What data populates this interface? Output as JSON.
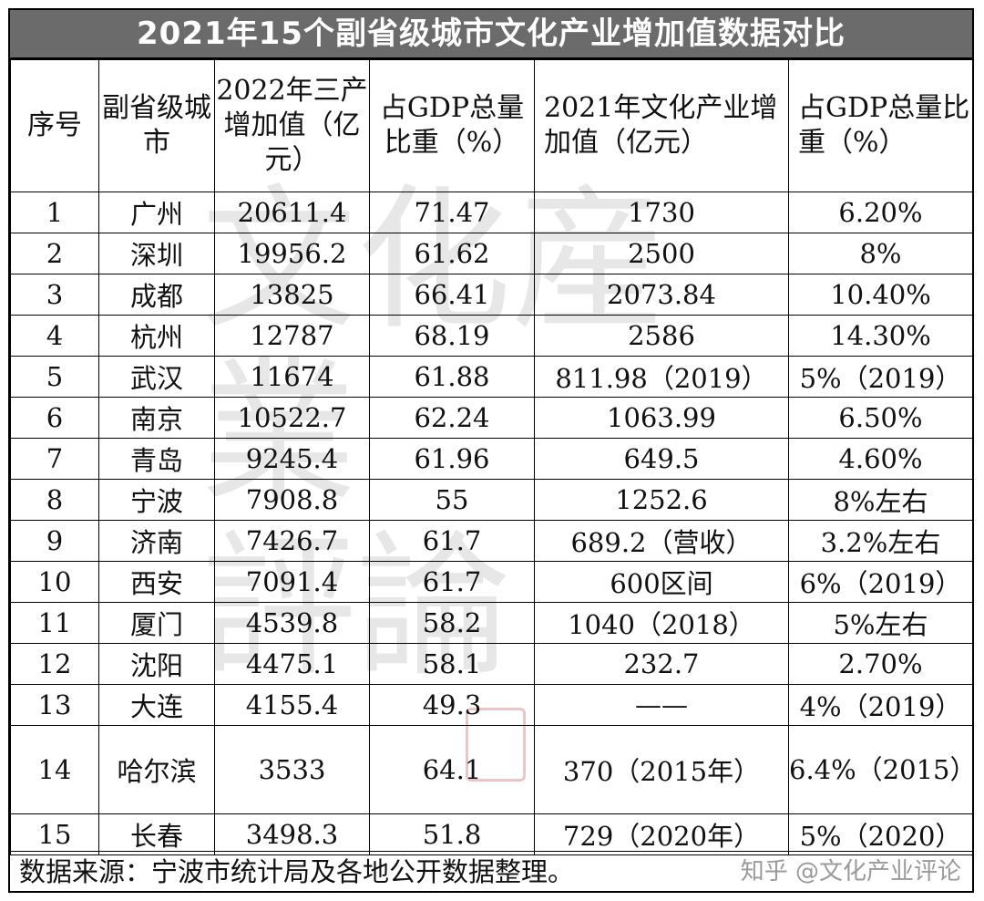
{
  "title": "2021年15个副省级城市文化产业增加值数据对比",
  "headers": [
    "序号",
    "副省级城市",
    "2022年三产增加值（亿元）",
    "占GDP总量比重（%）",
    "2021年文化产业增加值（亿元）",
    "占GDP总量比重（%）"
  ],
  "rows": [
    [
      "1",
      "广州",
      "20611.4",
      "71.47",
      "1730",
      "6.20%"
    ],
    [
      "2",
      "深圳",
      "19956.2",
      "61.62",
      "2500",
      "8%"
    ],
    [
      "3",
      "成都",
      "13825",
      "66.41",
      "2073.84",
      "10.40%"
    ],
    [
      "4",
      "杭州",
      "12787",
      "68.19",
      "2586",
      "14.30%"
    ],
    [
      "5",
      "武汉",
      "11674",
      "61.88",
      "811.98（2019）",
      "5%（2019）"
    ],
    [
      "6",
      "南京",
      "10522.7",
      "62.24",
      "1063.99",
      "6.50%"
    ],
    [
      "7",
      "青岛",
      "9245.4",
      "61.96",
      "649.5",
      "4.60%"
    ],
    [
      "8",
      "宁波",
      "7908.8",
      "55",
      "1252.6",
      "8%左右"
    ],
    [
      "9",
      "济南",
      "7426.7",
      "61.7",
      "689.2（营收）",
      "3.2%左右"
    ],
    [
      "10",
      "西安",
      "7091.4",
      "61.7",
      "600区间",
      "6%（2019）"
    ],
    [
      "11",
      "厦门",
      "4539.8",
      "58.2",
      "1040（2018）",
      "5%左右"
    ],
    [
      "12",
      "沈阳",
      "4475.1",
      "58.1",
      "232.7",
      "2.70%"
    ],
    [
      "13",
      "大连",
      "4155.4",
      "49.3",
      "——",
      "4%（2019）"
    ],
    [
      "14",
      "哈尔滨",
      "3533",
      "64.1",
      "370（2015年）",
      "6.4%（2015）"
    ],
    [
      "15",
      "长春",
      "3498.3",
      "51.8",
      "729（2020年）",
      "5%（2020）"
    ]
  ],
  "footer": {
    "source": "数据来源：宁波市统计局及各地公开数据整理。",
    "watermark": "知乎 @文化产业评论"
  },
  "colors": {
    "title_bg": "#6b6b6b",
    "title_text": "#ffffff",
    "border": "#000000"
  }
}
